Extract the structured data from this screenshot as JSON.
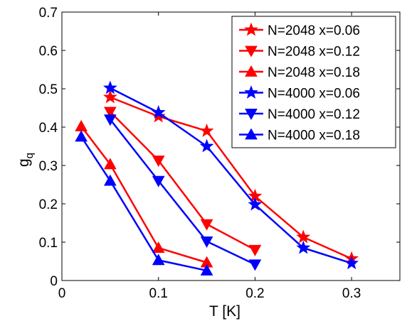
{
  "chart_data": {
    "type": "line",
    "xlabel": "T [K]",
    "ylabel": "g",
    "ylabel_sub": "q",
    "xlim": [
      0,
      0.35
    ],
    "ylim": [
      0,
      0.7
    ],
    "xticks": [
      "0",
      "0.1",
      "0.2",
      "0.3"
    ],
    "xtick_values": [
      0,
      0.1,
      0.2,
      0.3
    ],
    "yticks": [
      "0",
      "0.1",
      "0.2",
      "0.3",
      "0.4",
      "0.5",
      "0.6",
      "0.7"
    ],
    "ytick_values": [
      0,
      0.1,
      0.2,
      0.3,
      0.4,
      0.5,
      0.6,
      0.7
    ],
    "grid": false,
    "legend_position": "top-right",
    "series": [
      {
        "name": "N=2048 x=0.06",
        "color": "#ff0000",
        "marker": "star",
        "x": [
          0.05,
          0.1,
          0.15,
          0.2,
          0.25,
          0.3
        ],
        "y": [
          0.478,
          0.428,
          0.39,
          0.22,
          0.113,
          0.057
        ]
      },
      {
        "name": "N=2048 x=0.12",
        "color": "#ff0000",
        "marker": "triangle-down",
        "x": [
          0.05,
          0.1,
          0.15,
          0.2
        ],
        "y": [
          0.44,
          0.313,
          0.147,
          0.08
        ]
      },
      {
        "name": "N=2048 x=0.18",
        "color": "#ff0000",
        "marker": "triangle-up",
        "x": [
          0.02,
          0.05,
          0.1,
          0.15
        ],
        "y": [
          0.402,
          0.303,
          0.085,
          0.047
        ]
      },
      {
        "name": "N=4000 x=0.06",
        "color": "#0000ff",
        "marker": "star",
        "x": [
          0.05,
          0.1,
          0.15,
          0.2,
          0.25,
          0.3
        ],
        "y": [
          0.502,
          0.438,
          0.35,
          0.198,
          0.085,
          0.045
        ]
      },
      {
        "name": "N=4000 x=0.12",
        "color": "#0000ff",
        "marker": "triangle-down",
        "x": [
          0.05,
          0.1,
          0.15,
          0.2
        ],
        "y": [
          0.42,
          0.26,
          0.102,
          0.042
        ]
      },
      {
        "name": "N=4000 x=0.18",
        "color": "#0000ff",
        "marker": "triangle-up",
        "x": [
          0.02,
          0.05,
          0.1,
          0.15
        ],
        "y": [
          0.375,
          0.26,
          0.053,
          0.026
        ]
      }
    ]
  }
}
